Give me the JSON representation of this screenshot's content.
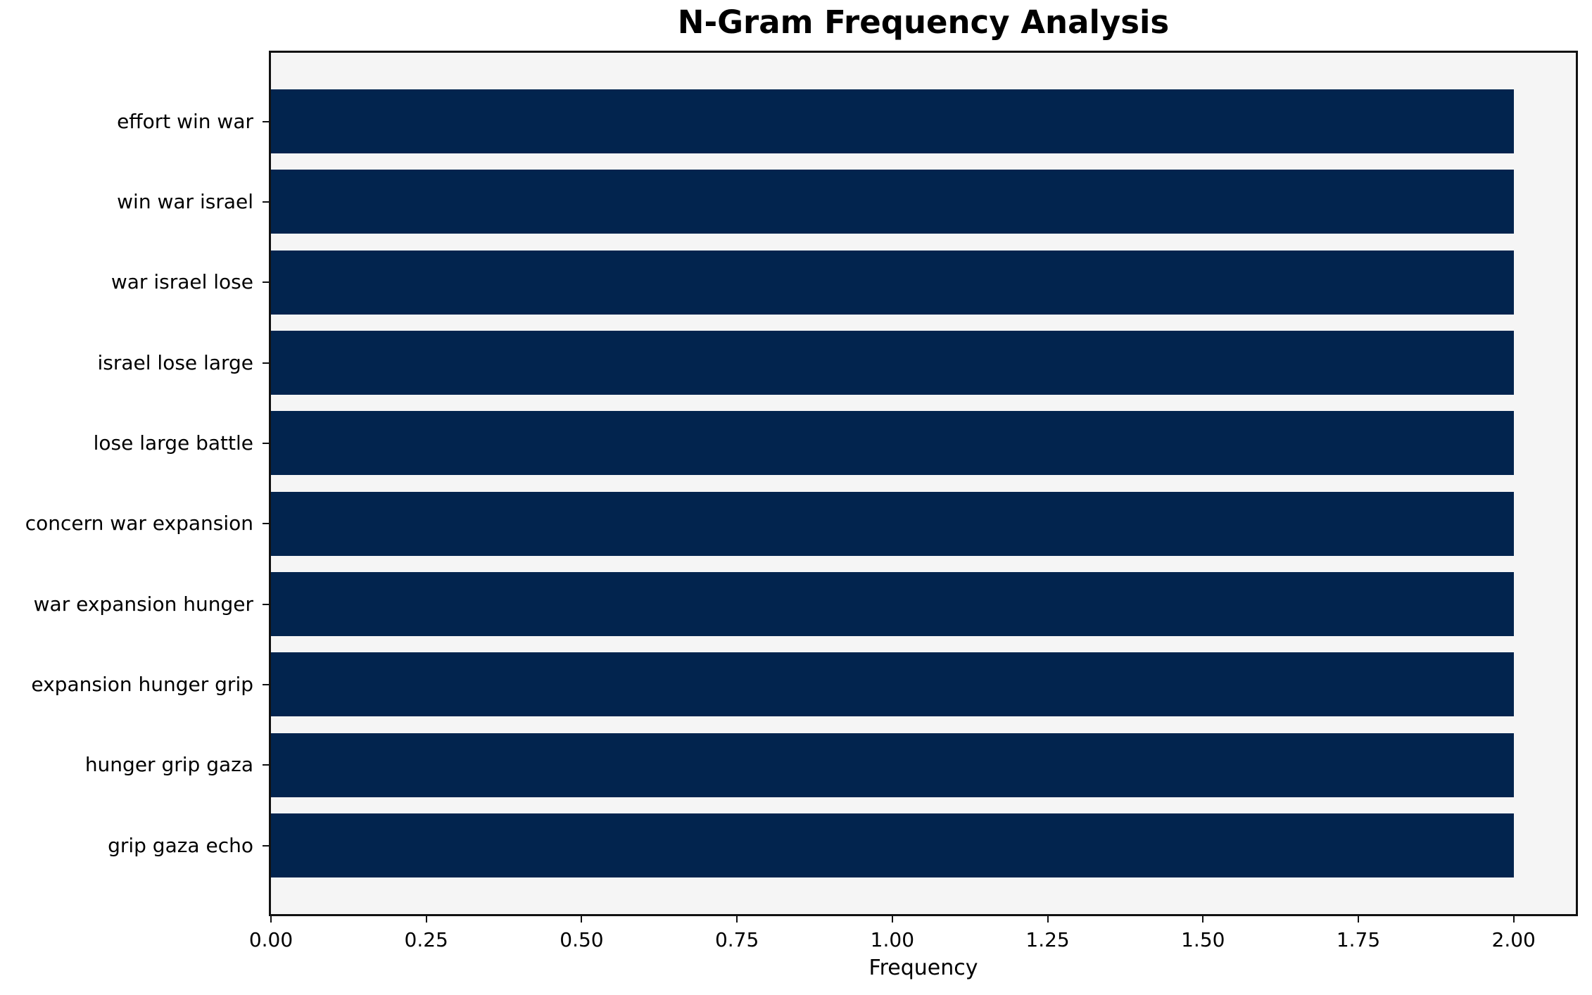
{
  "chart_data": {
    "type": "bar",
    "orientation": "horizontal",
    "title": "N-Gram Frequency Analysis",
    "xlabel": "Frequency",
    "ylabel": "",
    "categories": [
      "effort win war",
      "win war israel",
      "war israel lose",
      "israel lose large",
      "lose large battle",
      "concern war expansion",
      "war expansion hunger",
      "expansion hunger grip",
      "hunger grip gaza",
      "grip gaza echo"
    ],
    "values": [
      2,
      2,
      2,
      2,
      2,
      2,
      2,
      2,
      2,
      2
    ],
    "x_ticks": [
      "0.00",
      "0.25",
      "0.50",
      "0.75",
      "1.00",
      "1.25",
      "1.50",
      "1.75",
      "2.00"
    ],
    "xlim": [
      0,
      2.1
    ],
    "grid": false,
    "legend": null,
    "colors": {
      "bar": "#02244E",
      "plot_background": "#F5F5F5",
      "figure_background": "#FFFFFF",
      "text": "#000000"
    }
  }
}
